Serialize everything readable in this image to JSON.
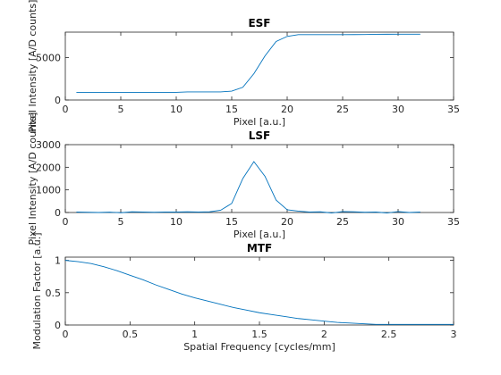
{
  "chart_data": [
    {
      "type": "line",
      "title": "ESF",
      "xlabel": "Pixel [a.u.]",
      "ylabel": "Pixel Intensity [A/D counts]",
      "xlim": [
        0,
        35
      ],
      "ylim": [
        0,
        8000
      ],
      "xticks": [
        0,
        5,
        10,
        15,
        20,
        25,
        30,
        35
      ],
      "yticks": [
        0,
        5000
      ],
      "grid": false,
      "color": "#0072BD",
      "series": [
        {
          "x": [
            1,
            2,
            3,
            4,
            5,
            6,
            7,
            8,
            9,
            10,
            11,
            12,
            13,
            14,
            15,
            16,
            17,
            18,
            19,
            20,
            21,
            22,
            23,
            24,
            25,
            26,
            27,
            28,
            29,
            30,
            31,
            32
          ],
          "values": [
            900,
            900,
            900,
            900,
            900,
            900,
            900,
            900,
            900,
            900,
            950,
            950,
            950,
            950,
            1050,
            1500,
            3100,
            5200,
            6900,
            7500,
            7700,
            7700,
            7700,
            7700,
            7700,
            7710,
            7720,
            7740,
            7750,
            7760,
            7760,
            7760
          ]
        }
      ]
    },
    {
      "type": "line",
      "title": "LSF",
      "xlabel": "Pixel [a.u.]",
      "ylabel": "Pixel Intensity [A/D counts]",
      "xlim": [
        0,
        35
      ],
      "ylim": [
        0,
        3000
      ],
      "xticks": [
        0,
        5,
        10,
        15,
        20,
        25,
        30,
        35
      ],
      "yticks": [
        0,
        1000,
        2000,
        3000
      ],
      "grid": false,
      "color": "#0072BD",
      "series": [
        {
          "x": [
            1,
            2,
            3,
            4,
            5,
            6,
            7,
            8,
            9,
            10,
            11,
            12,
            13,
            14,
            15,
            16,
            17,
            18,
            19,
            20,
            21,
            22,
            23,
            24,
            25,
            26,
            27,
            28,
            29,
            30,
            31,
            32
          ],
          "values": [
            20,
            10,
            0,
            15,
            -10,
            30,
            20,
            10,
            20,
            20,
            30,
            20,
            30,
            100,
            400,
            1500,
            2250,
            1600,
            550,
            120,
            60,
            20,
            30,
            -20,
            40,
            30,
            10,
            20,
            -20,
            40,
            0,
            20
          ]
        }
      ]
    },
    {
      "type": "line",
      "title": "MTF",
      "xlabel": "Spatial Frequency [cycles/mm]",
      "ylabel": "Modulation Factor [a.u.]",
      "xlim": [
        0,
        3
      ],
      "ylim": [
        0,
        1.05
      ],
      "xticks": [
        0,
        0.5,
        1,
        1.5,
        2,
        2.5,
        3
      ],
      "yticks": [
        0,
        0.5,
        1
      ],
      "grid": false,
      "color": "#0072BD",
      "series": [
        {
          "x": [
            0,
            0.1,
            0.2,
            0.3,
            0.4,
            0.5,
            0.6,
            0.7,
            0.8,
            0.9,
            1.0,
            1.1,
            1.2,
            1.3,
            1.4,
            1.5,
            1.6,
            1.7,
            1.8,
            1.9,
            2.0,
            2.1,
            2.2,
            2.3,
            2.4,
            2.5,
            2.6,
            2.7,
            2.8,
            2.9,
            3.0
          ],
          "values": [
            1.0,
            0.98,
            0.95,
            0.9,
            0.84,
            0.77,
            0.7,
            0.62,
            0.55,
            0.48,
            0.42,
            0.37,
            0.32,
            0.27,
            0.23,
            0.19,
            0.16,
            0.13,
            0.1,
            0.08,
            0.06,
            0.04,
            0.03,
            0.02,
            0.01,
            0.01,
            0.01,
            0.01,
            0.01,
            0.01,
            0.01
          ]
        }
      ]
    }
  ]
}
